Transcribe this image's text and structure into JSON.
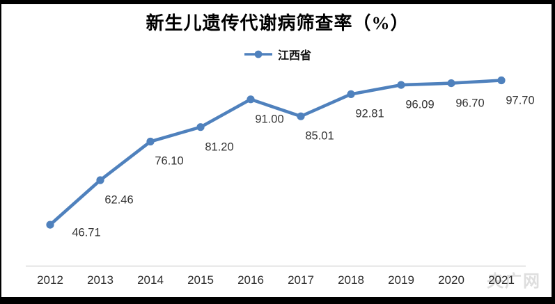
{
  "chart_data": {
    "type": "line",
    "title": "新生儿遗传代谢病筛查率（%）",
    "categories": [
      "2012",
      "2013",
      "2014",
      "2015",
      "2016",
      "2017",
      "2018",
      "2019",
      "2020",
      "2021"
    ],
    "series": [
      {
        "name": "江西省",
        "color": "#4F81BD",
        "values": [
          46.71,
          62.46,
          76.1,
          81.2,
          91.0,
          85.01,
          92.81,
          96.09,
          96.7,
          97.7
        ],
        "labels": [
          "46.71",
          "62.46",
          "76.10",
          "81.20",
          "91.00",
          "85.01",
          "92.81",
          "96.09",
          "96.70",
          "97.70"
        ]
      }
    ],
    "xlabel": "",
    "ylabel": "",
    "ylim": [
      32,
      102
    ],
    "grid": false,
    "legend_position": "top-center",
    "x_axis_line_color": "#d9d9d9",
    "data_label_position": "below-right"
  },
  "watermark": {
    "text": "央广网"
  },
  "colors": {
    "line": "#4F81BD",
    "data_label": "#333333",
    "tick_label": "#2d2d2d",
    "axis_line": "#d9d9d9",
    "frame": "#000000",
    "watermark": "#dedede",
    "background": "#ffffff"
  }
}
